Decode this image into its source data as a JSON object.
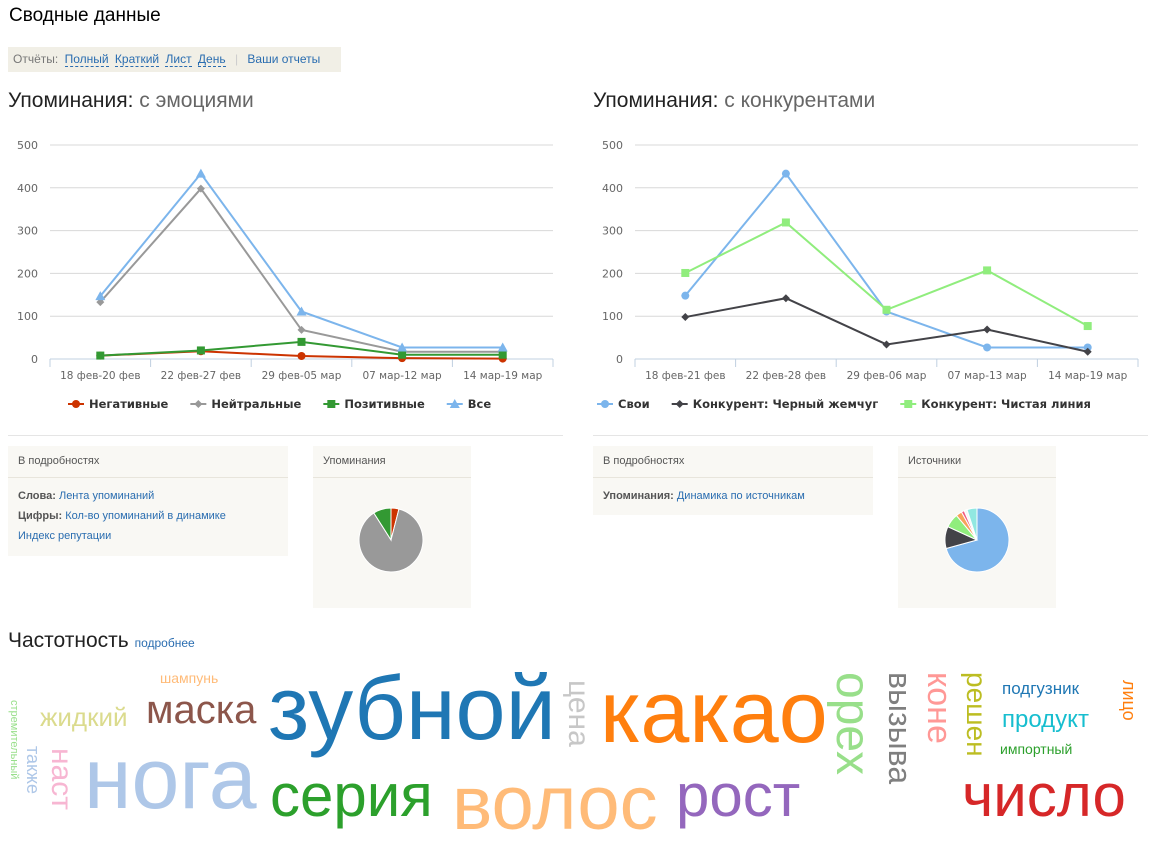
{
  "title": "Сводные данные",
  "reports": {
    "label": "Отчёты:",
    "links": [
      "Полный",
      "Краткий",
      "Лист",
      "День"
    ],
    "your_reports": "Ваши отчеты"
  },
  "emotions": {
    "title": "Упоминания:",
    "subtitle": "с эмоциями",
    "details": {
      "header": "В подробностях",
      "words_label": "Слова:",
      "words_link": "Лента упоминаний",
      "numbers_label": "Цифры:",
      "numbers_link": "Кол-во упоминаний в динамике",
      "reputation_link": "Индекс репутации"
    },
    "pie": {
      "header": "Упоминания",
      "slices": [
        {
          "value": 4,
          "color": "#cc3300"
        },
        {
          "value": 87,
          "color": "#999999"
        },
        {
          "value": 9,
          "color": "#339933"
        }
      ]
    }
  },
  "competitors": {
    "title": "Упоминания:",
    "subtitle": "с конкурентами",
    "details": {
      "header": "В подробностях",
      "mentions_label": "Упоминания:",
      "mentions_link": "Динамика по источникам"
    },
    "pie": {
      "header": "Источники",
      "slices": [
        {
          "value": 70,
          "color": "#7cb5ec"
        },
        {
          "value": 11,
          "color": "#434348"
        },
        {
          "value": 7,
          "color": "#90ed7d"
        },
        {
          "value": 3,
          "color": "#f7a35c"
        },
        {
          "value": 1.5,
          "color": "#f15c80"
        },
        {
          "value": 1.5,
          "color": "#f7f7f7"
        },
        {
          "value": 5,
          "color": "#91e8e1"
        }
      ]
    }
  },
  "chart_data": [
    {
      "type": "line",
      "ylim": [
        0,
        500
      ],
      "yticks": [
        0,
        100,
        200,
        300,
        400,
        500
      ],
      "grid": true,
      "legend": "bottom",
      "categories": [
        "18 фев-20 фев",
        "22 фев-27 фев",
        "29 фев-05 мар",
        "07 мар-12 мар",
        "14 мар-19 мар"
      ],
      "series": [
        {
          "name": "Негативные",
          "color": "#cc3300",
          "marker": "circle",
          "values": [
            8,
            18,
            7,
            2,
            1
          ]
        },
        {
          "name": "Нейтральные",
          "color": "#999999",
          "marker": "diamond",
          "values": [
            133,
            398,
            68,
            17,
            17
          ]
        },
        {
          "name": "Позитивные",
          "color": "#339933",
          "marker": "square",
          "values": [
            8,
            20,
            40,
            10,
            10
          ]
        },
        {
          "name": "Все",
          "color": "#7cb5ec",
          "marker": "triangle",
          "values": [
            147,
            433,
            111,
            27,
            27
          ]
        }
      ]
    },
    {
      "type": "line",
      "ylim": [
        0,
        500
      ],
      "yticks": [
        0,
        100,
        200,
        300,
        400,
        500
      ],
      "grid": true,
      "legend": "bottom",
      "categories": [
        "18 фев-21 фев",
        "22 фев-28 фев",
        "29 фев-06 мар",
        "07 мар-13 мар",
        "14 мар-19 мар"
      ],
      "series": [
        {
          "name": "Свои",
          "color": "#7cb5ec",
          "marker": "circle",
          "values": [
            148,
            433,
            111,
            27,
            27
          ]
        },
        {
          "name": "Конкурент: Черный жемчуг",
          "color": "#434348",
          "marker": "diamond",
          "values": [
            98,
            142,
            34,
            69,
            17
          ]
        },
        {
          "name": "Конкурент: Чистая линия",
          "color": "#90ed7d",
          "marker": "square",
          "values": [
            201,
            319,
            115,
            207,
            77
          ]
        }
      ]
    }
  ],
  "frequency": {
    "title": "Частотность",
    "more_link": "подробнее",
    "words": [
      {
        "text": "стремительный",
        "color": "#98df8a"
      },
      {
        "text": "жидкий",
        "color": "#dbdb8d"
      },
      {
        "text": "шампунь",
        "color": "#ffbb78"
      },
      {
        "text": "импортный",
        "color": "#2ca02c"
      },
      {
        "text": "маска",
        "color": "#8c564b"
      },
      {
        "text": "зубной",
        "color": "#1f77b4"
      },
      {
        "text": "цена",
        "color": "#c7c7c7"
      },
      {
        "text": "какао",
        "color": "#ff7f0e"
      },
      {
        "text": "орех",
        "color": "#98df8a"
      },
      {
        "text": "вызыва",
        "color": "#7f7f7f"
      },
      {
        "text": "коне",
        "color": "#ff9896"
      },
      {
        "text": "решен",
        "color": "#bcbd22"
      },
      {
        "text": "наст",
        "color": "#f7b6d2"
      },
      {
        "text": "также",
        "color": "#aec7e8"
      },
      {
        "text": "нога",
        "color": "#aec7e8"
      },
      {
        "text": "продукт",
        "color": "#17becf"
      },
      {
        "text": "подгузник",
        "color": "#1f77b4"
      },
      {
        "text": "серия",
        "color": "#2ca02c"
      },
      {
        "text": "волос",
        "color": "#ffbb78"
      },
      {
        "text": "лицо",
        "color": "#ff7f0e"
      },
      {
        "text": "рост",
        "color": "#9467bd"
      },
      {
        "text": "число",
        "color": "#d62728"
      }
    ]
  }
}
